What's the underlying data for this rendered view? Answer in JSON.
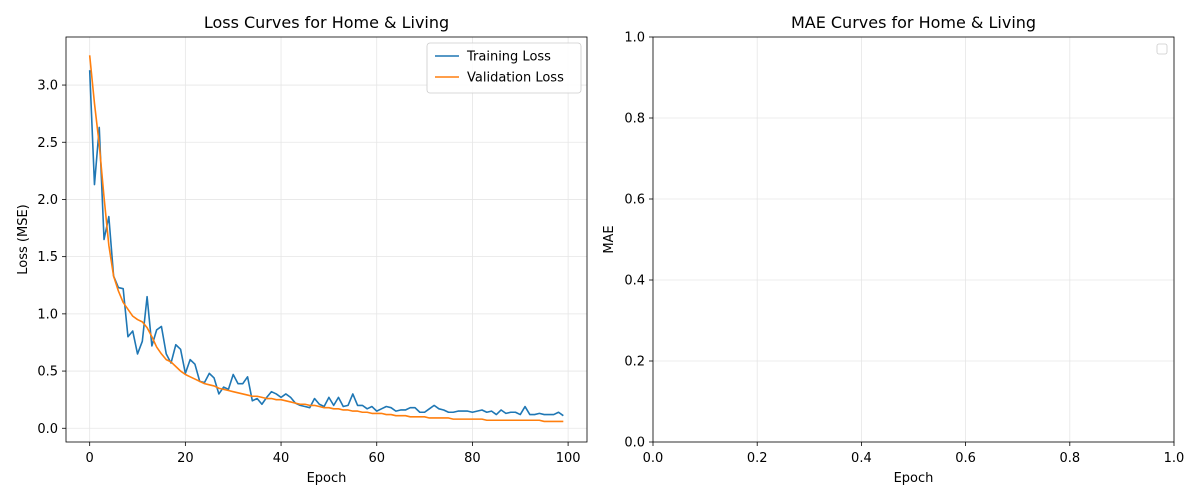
{
  "chart_data": [
    {
      "type": "line",
      "title": "Loss Curves for Home & Living",
      "xlabel": "Epoch",
      "ylabel": "Loss (MSE)",
      "xlim": [
        -4.95,
        103.95
      ],
      "ylim": [
        -0.12,
        3.42
      ],
      "xticks": [
        0,
        20,
        40,
        60,
        80,
        100
      ],
      "yticks": [
        0.0,
        0.5,
        1.0,
        1.5,
        2.0,
        2.5,
        3.0
      ],
      "grid": true,
      "legend": "top-right",
      "series": [
        {
          "name": "Training Loss",
          "color": "#1f77b4",
          "x": [
            0,
            1,
            2,
            3,
            4,
            5,
            6,
            7,
            8,
            9,
            10,
            11,
            12,
            13,
            14,
            15,
            16,
            17,
            18,
            19,
            20,
            21,
            22,
            23,
            24,
            25,
            26,
            27,
            28,
            29,
            30,
            31,
            32,
            33,
            34,
            35,
            36,
            37,
            38,
            39,
            40,
            41,
            42,
            43,
            44,
            45,
            46,
            47,
            48,
            49,
            50,
            51,
            52,
            53,
            54,
            55,
            56,
            57,
            58,
            59,
            60,
            61,
            62,
            63,
            64,
            65,
            66,
            67,
            68,
            69,
            70,
            71,
            72,
            73,
            74,
            75,
            76,
            77,
            78,
            79,
            80,
            81,
            82,
            83,
            84,
            85,
            86,
            87,
            88,
            89,
            90,
            91,
            92,
            93,
            94,
            95,
            96,
            97,
            98,
            99
          ],
          "values": [
            3.13,
            2.13,
            2.63,
            1.65,
            1.85,
            1.33,
            1.23,
            1.22,
            0.8,
            0.85,
            0.65,
            0.76,
            1.15,
            0.72,
            0.86,
            0.89,
            0.65,
            0.57,
            0.73,
            0.69,
            0.48,
            0.6,
            0.56,
            0.41,
            0.4,
            0.48,
            0.44,
            0.3,
            0.36,
            0.34,
            0.47,
            0.39,
            0.39,
            0.45,
            0.24,
            0.26,
            0.21,
            0.27,
            0.32,
            0.3,
            0.27,
            0.3,
            0.27,
            0.22,
            0.2,
            0.19,
            0.18,
            0.26,
            0.21,
            0.19,
            0.27,
            0.2,
            0.27,
            0.19,
            0.2,
            0.3,
            0.2,
            0.2,
            0.17,
            0.19,
            0.15,
            0.17,
            0.19,
            0.18,
            0.15,
            0.16,
            0.16,
            0.18,
            0.18,
            0.14,
            0.14,
            0.17,
            0.2,
            0.17,
            0.16,
            0.14,
            0.14,
            0.15,
            0.15,
            0.15,
            0.14,
            0.15,
            0.16,
            0.14,
            0.15,
            0.12,
            0.16,
            0.13,
            0.14,
            0.14,
            0.12,
            0.19,
            0.12,
            0.12,
            0.13,
            0.12,
            0.12,
            0.12,
            0.14,
            0.11
          ]
        },
        {
          "name": "Validation Loss",
          "color": "#ff7f0e",
          "x": [
            0,
            1,
            2,
            3,
            4,
            5,
            6,
            7,
            8,
            9,
            10,
            11,
            12,
            13,
            14,
            15,
            16,
            17,
            18,
            19,
            20,
            21,
            22,
            23,
            24,
            25,
            26,
            27,
            28,
            29,
            30,
            31,
            32,
            33,
            34,
            35,
            36,
            37,
            38,
            39,
            40,
            41,
            42,
            43,
            44,
            45,
            46,
            47,
            48,
            49,
            50,
            51,
            52,
            53,
            54,
            55,
            56,
            57,
            58,
            59,
            60,
            61,
            62,
            63,
            64,
            65,
            66,
            67,
            68,
            69,
            70,
            71,
            72,
            73,
            74,
            75,
            76,
            77,
            78,
            79,
            80,
            81,
            82,
            83,
            84,
            85,
            86,
            87,
            88,
            89,
            90,
            91,
            92,
            93,
            94,
            95,
            96,
            97,
            98,
            99
          ],
          "values": [
            3.26,
            2.84,
            2.48,
            2.02,
            1.6,
            1.33,
            1.2,
            1.1,
            1.04,
            0.98,
            0.95,
            0.93,
            0.88,
            0.8,
            0.71,
            0.65,
            0.6,
            0.58,
            0.54,
            0.5,
            0.47,
            0.45,
            0.43,
            0.41,
            0.39,
            0.38,
            0.37,
            0.35,
            0.34,
            0.33,
            0.32,
            0.31,
            0.3,
            0.29,
            0.28,
            0.28,
            0.27,
            0.26,
            0.26,
            0.25,
            0.25,
            0.24,
            0.23,
            0.22,
            0.21,
            0.21,
            0.2,
            0.2,
            0.19,
            0.18,
            0.18,
            0.17,
            0.17,
            0.16,
            0.16,
            0.15,
            0.15,
            0.14,
            0.14,
            0.13,
            0.13,
            0.13,
            0.12,
            0.12,
            0.11,
            0.11,
            0.11,
            0.1,
            0.1,
            0.1,
            0.1,
            0.09,
            0.09,
            0.09,
            0.09,
            0.09,
            0.08,
            0.08,
            0.08,
            0.08,
            0.08,
            0.08,
            0.08,
            0.07,
            0.07,
            0.07,
            0.07,
            0.07,
            0.07,
            0.07,
            0.07,
            0.07,
            0.07,
            0.07,
            0.07,
            0.06,
            0.06,
            0.06,
            0.06,
            0.06
          ]
        }
      ]
    },
    {
      "type": "line",
      "title": "MAE Curves for Home & Living",
      "xlabel": "Epoch",
      "ylabel": "MAE",
      "xlim": [
        0,
        1
      ],
      "ylim": [
        0,
        1
      ],
      "xticks": [
        0.0,
        0.2,
        0.4,
        0.6,
        0.8,
        1.0
      ],
      "yticks": [
        0.0,
        0.2,
        0.4,
        0.6,
        0.8,
        1.0
      ],
      "grid": true,
      "legend": "top-right",
      "series": []
    }
  ]
}
